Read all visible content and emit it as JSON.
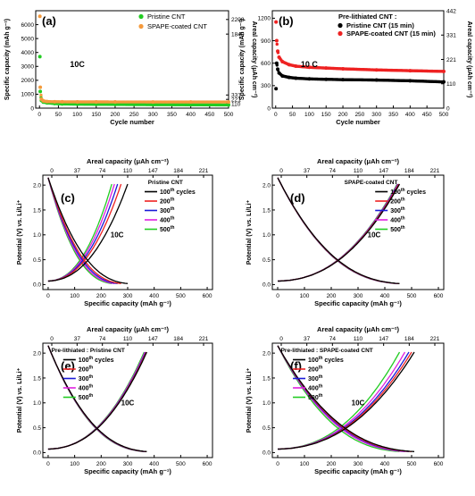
{
  "colors": {
    "green": "#22cc22",
    "orange": "#f59a3c",
    "red": "#ee2222",
    "black": "#000000",
    "blue": "#1a1ad8",
    "magenta": "#e020e0"
  },
  "chart_data": [
    {
      "panel": "(a)",
      "type": "scatter",
      "annotation": "10C",
      "xlabel": "Cycle number",
      "ylabel": "Specific capacity (mAh g⁻¹)",
      "y2label": "Areal capacity (μAh cm⁻²)",
      "xlim": [
        -10,
        500
      ],
      "ylim": [
        0,
        7000
      ],
      "xticks": [
        0,
        50,
        100,
        150,
        200,
        250,
        300,
        350,
        400,
        450,
        500
      ],
      "yticks": [
        0,
        1000,
        2000,
        3000,
        4000,
        5000,
        6000
      ],
      "y2ticks": [
        "110",
        "221",
        "331",
        "1840",
        "2208"
      ],
      "legend": [
        "Pristine CNT",
        "SPAPE-coated CNT"
      ],
      "series": [
        {
          "name": "Pristine CNT",
          "color": "green",
          "x": [
            1,
            2,
            5,
            10,
            20,
            40,
            60,
            100,
            150,
            200,
            300,
            400,
            500
          ],
          "y": [
            3700,
            1200,
            550,
            430,
            380,
            330,
            300,
            285,
            275,
            265,
            250,
            240,
            230
          ]
        },
        {
          "name": "SPAPE-coated CNT",
          "color": "orange",
          "x": [
            1,
            2,
            5,
            10,
            20,
            40,
            60,
            100,
            150,
            200,
            300,
            400,
            500
          ],
          "y": [
            6600,
            1500,
            650,
            520,
            470,
            460,
            455,
            450,
            450,
            448,
            445,
            445,
            445
          ]
        }
      ]
    },
    {
      "panel": "(b)",
      "type": "scatter",
      "annotation": "10 C",
      "legend_title": "Pre-lithiated CNT :",
      "xlabel": "Cycle number",
      "ylabel": "Specific capacity (mAh g⁻¹)",
      "y2label": "Areal capacity (μAh cm⁻²)",
      "xlim": [
        -10,
        500
      ],
      "ylim": [
        0,
        1300
      ],
      "xticks": [
        0,
        50,
        100,
        150,
        200,
        250,
        300,
        350,
        400,
        450,
        500
      ],
      "yticks": [
        0,
        300,
        600,
        900,
        1200
      ],
      "y2ticks": [
        "0",
        "110",
        "221",
        "331",
        "442"
      ],
      "legend": [
        "Pristine CNT (15 min)",
        "SPAPE-coated CNT (15 min)"
      ],
      "series": [
        {
          "name": "Pristine CNT (15 min)",
          "color": "black",
          "x": [
            1,
            3,
            6,
            10,
            20,
            40,
            60,
            100,
            150,
            200,
            300,
            400,
            500
          ],
          "y": [
            260,
            600,
            520,
            470,
            430,
            410,
            400,
            390,
            385,
            380,
            375,
            365,
            350
          ]
        },
        {
          "name": "SPAPE-coated CNT (15 min)",
          "color": "red",
          "x": [
            1,
            3,
            6,
            10,
            20,
            40,
            60,
            100,
            150,
            200,
            300,
            400,
            500
          ],
          "y": [
            1150,
            900,
            760,
            680,
            620,
            580,
            560,
            545,
            535,
            525,
            510,
            500,
            490
          ]
        }
      ]
    },
    {
      "panel": "(c)",
      "type": "line",
      "annotation": "10C",
      "legend_title": "Pristine CNT",
      "xlabel": "Specific capacity (mAh g⁻¹)",
      "x2label": "Areal capacity (μAh cm⁻²)",
      "ylabel": "Potential (V) vs. Li/Li⁺",
      "xlim": [
        -20,
        620
      ],
      "ylim": [
        -0.1,
        2.2
      ],
      "xticks": [
        0,
        100,
        200,
        300,
        400,
        500,
        600
      ],
      "x2ticks": [
        "0",
        "37",
        "74",
        "110",
        "147",
        "184",
        "221"
      ],
      "yticks": [
        0.0,
        0.5,
        1.0,
        1.5,
        2.0
      ],
      "series": [
        {
          "name": "100",
          "suffix": "th cycles",
          "color": "black",
          "cap": 300
        },
        {
          "name": "200",
          "suffix": "th",
          "color": "red",
          "cap": 275
        },
        {
          "name": "300",
          "suffix": "th",
          "color": "blue",
          "cap": 262
        },
        {
          "name": "400",
          "suffix": "th",
          "color": "magenta",
          "cap": 250
        },
        {
          "name": "500",
          "suffix": "th",
          "color": "green",
          "cap": 240
        }
      ]
    },
    {
      "panel": "(d)",
      "type": "line",
      "annotation": "10C",
      "legend_title": "SPAPE-coated CNT",
      "xlabel": "Specific capacity (mAh g⁻¹)",
      "x2label": "Areal capacity (μAh cm⁻²)",
      "ylabel": "Potential (V) vs. Li/Li⁺",
      "xlim": [
        -20,
        620
      ],
      "ylim": [
        -0.1,
        2.2
      ],
      "xticks": [
        0,
        100,
        200,
        300,
        400,
        500,
        600
      ],
      "x2ticks": [
        "0",
        "37",
        "74",
        "110",
        "147",
        "184",
        "221"
      ],
      "yticks": [
        0.0,
        0.5,
        1.0,
        1.5,
        2.0
      ],
      "series": [
        {
          "name": "100",
          "suffix": "th cycles",
          "color": "black",
          "cap": 455
        },
        {
          "name": "200",
          "suffix": "th",
          "color": "red",
          "cap": 452
        },
        {
          "name": "300",
          "suffix": "th",
          "color": "blue",
          "cap": 450
        },
        {
          "name": "400",
          "suffix": "th",
          "color": "magenta",
          "cap": 448
        },
        {
          "name": "500",
          "suffix": "th",
          "color": "green",
          "cap": 446
        }
      ]
    },
    {
      "panel": "(e)",
      "type": "line",
      "annotation": "10C",
      "legend_title": "Pre-lithiated : Pristine CNT",
      "xlabel": "Specific capacity (mAh g⁻¹)",
      "x2label": "Areal capacity (μAh cm⁻²)",
      "ylabel": "Potential (V) vs. Li/Li⁺",
      "xlim": [
        -20,
        620
      ],
      "ylim": [
        -0.1,
        2.2
      ],
      "xticks": [
        0,
        100,
        200,
        300,
        400,
        500,
        600
      ],
      "x2ticks": [
        "0",
        "37",
        "74",
        "110",
        "147",
        "184",
        "221"
      ],
      "yticks": [
        0.0,
        0.5,
        1.0,
        1.5,
        2.0
      ],
      "series": [
        {
          "name": "100",
          "suffix": "th cycles",
          "color": "black",
          "cap": 372
        },
        {
          "name": "200",
          "suffix": "th",
          "color": "red",
          "cap": 370
        },
        {
          "name": "300",
          "suffix": "th",
          "color": "blue",
          "cap": 368
        },
        {
          "name": "400",
          "suffix": "th",
          "color": "magenta",
          "cap": 365
        },
        {
          "name": "500",
          "suffix": "th",
          "color": "green",
          "cap": 362
        }
      ]
    },
    {
      "panel": "(f)",
      "type": "line",
      "annotation": "10C",
      "legend_title": "Pre-lithiated : SPAPE-coated CNT",
      "xlabel": "Specific capacity (mAh g⁻¹)",
      "x2label": "Areal capacity (μAh cm⁻²)",
      "ylabel": "Potential (V) vs. Li/Li⁺",
      "xlim": [
        -20,
        620
      ],
      "ylim": [
        -0.1,
        2.2
      ],
      "xticks": [
        0,
        100,
        200,
        300,
        400,
        500,
        600
      ],
      "x2ticks": [
        "0",
        "37",
        "74",
        "110",
        "147",
        "184",
        "221"
      ],
      "yticks": [
        0.0,
        0.5,
        1.0,
        1.5,
        2.0
      ],
      "series": [
        {
          "name": "100",
          "suffix": "th cycles",
          "color": "black",
          "cap": 510
        },
        {
          "name": "200",
          "suffix": "th",
          "color": "red",
          "cap": 500
        },
        {
          "name": "300",
          "suffix": "th",
          "color": "blue",
          "cap": 490
        },
        {
          "name": "400",
          "suffix": "th",
          "color": "magenta",
          "cap": 475
        },
        {
          "name": "500",
          "suffix": "th",
          "color": "green",
          "cap": 455
        }
      ]
    }
  ]
}
